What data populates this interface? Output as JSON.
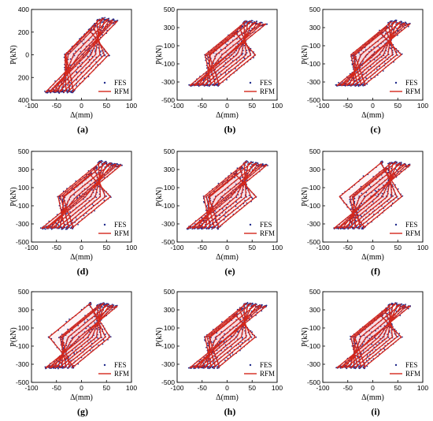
{
  "figure": {
    "legend": {
      "fes_label": "FES",
      "rfm_label": "RFM"
    },
    "colors": {
      "fes": "#1f2a8a",
      "rfm": "#d4281c",
      "fill": "#f6cfd8"
    }
  },
  "chart_data": [
    {
      "type": "scatter",
      "panel": "(a)",
      "xlabel": "Δ(mm)",
      "ylabel": "P(kN)",
      "xlim": [
        -100,
        100
      ],
      "ylim": [
        -400,
        400
      ],
      "xticks": [
        -100,
        -50,
        0,
        50,
        100
      ],
      "yticks": [
        -400,
        -200,
        0,
        200,
        400
      ],
      "ytick_labels": [
        "400",
        "200",
        "0",
        "200",
        "400"
      ],
      "legend_position": "bottom-right",
      "series": [
        {
          "name": "FES",
          "style": "dots"
        },
        {
          "name": "RFM",
          "style": "line"
        }
      ],
      "envelope": {
        "dmax": 72,
        "pmax": 330,
        "dmin": -72,
        "pmin": -330,
        "k": 20,
        "kh": 1.2,
        "d_peak": 40
      }
    },
    {
      "type": "scatter",
      "panel": "(b)",
      "xlabel": "Δ(mm)",
      "ylabel": "P(kN)",
      "xlim": [
        -100,
        100
      ],
      "ylim": [
        -500,
        500
      ],
      "xticks": [
        -100,
        -50,
        0,
        50,
        100
      ],
      "yticks": [
        -500,
        -300,
        -100,
        100,
        300,
        500
      ],
      "legend_position": "bottom-right",
      "series": [
        {
          "name": "FES",
          "style": "dots"
        },
        {
          "name": "RFM",
          "style": "line"
        }
      ],
      "envelope": {
        "dmax": 78,
        "pmax": 380,
        "dmin": -75,
        "pmin": -340,
        "k": 20,
        "kh": 1.4,
        "d_peak": 40
      }
    },
    {
      "type": "scatter",
      "panel": "(c)",
      "xlabel": "Δ(mm)",
      "ylabel": "P(kN)",
      "xlim": [
        -100,
        100
      ],
      "ylim": [
        -500,
        500
      ],
      "xticks": [
        -100,
        -50,
        0,
        50,
        100
      ],
      "yticks": [
        -500,
        -300,
        -100,
        100,
        300,
        500
      ],
      "legend_position": "bottom-right",
      "series": [
        {
          "name": "FES",
          "style": "dots"
        },
        {
          "name": "RFM",
          "style": "line"
        }
      ],
      "envelope": {
        "dmax": 75,
        "pmax": 380,
        "dmin": -72,
        "pmin": -340,
        "k": 20,
        "kh": 1.3,
        "d_peak": 40
      }
    },
    {
      "type": "scatter",
      "panel": "(d)",
      "xlabel": "Δ(mm)",
      "ylabel": "P(kN)",
      "xlim": [
        -100,
        100
      ],
      "ylim": [
        -500,
        500
      ],
      "xticks": [
        -100,
        -50,
        0,
        50,
        100
      ],
      "yticks": [
        -500,
        -300,
        -100,
        100,
        300,
        500
      ],
      "legend_position": "bottom-right",
      "series": [
        {
          "name": "FES",
          "style": "dots"
        },
        {
          "name": "RFM",
          "style": "line"
        }
      ],
      "envelope": {
        "dmax": 80,
        "pmax": 390,
        "dmin": -80,
        "pmin": -350,
        "k": 20,
        "kh": 1.4,
        "d_peak": 40
      }
    },
    {
      "type": "scatter",
      "panel": "(e)",
      "xlabel": "Δ(mm)",
      "ylabel": "P(kN)",
      "xlim": [
        -100,
        100
      ],
      "ylim": [
        -500,
        500
      ],
      "xticks": [
        -100,
        -50,
        0,
        50,
        100
      ],
      "yticks": [
        -500,
        -300,
        -100,
        100,
        300,
        500
      ],
      "legend_position": "bottom-right",
      "series": [
        {
          "name": "FES",
          "style": "dots"
        },
        {
          "name": "RFM",
          "style": "line"
        }
      ],
      "envelope": {
        "dmax": 80,
        "pmax": 390,
        "dmin": -80,
        "pmin": -350,
        "k": 20,
        "kh": 1.4,
        "d_peak": 40
      }
    },
    {
      "type": "scatter",
      "panel": "(f)",
      "xlabel": "Δ(mm)",
      "ylabel": "P(kN)",
      "xlim": [
        -100,
        100
      ],
      "ylim": [
        -500,
        500
      ],
      "xticks": [
        -100,
        -50,
        0,
        50,
        100
      ],
      "yticks": [
        -500,
        -300,
        -100,
        100,
        300,
        500
      ],
      "legend_position": "bottom-right",
      "series": [
        {
          "name": "FES",
          "style": "dots"
        },
        {
          "name": "RFM",
          "style": "line"
        }
      ],
      "envelope": {
        "dmax": 75,
        "pmax": 390,
        "dmin": -78,
        "pmin": -350,
        "k": 20,
        "kh": 1.4,
        "d_peak": 40
      }
    },
    {
      "type": "scatter",
      "panel": "(g)",
      "xlabel": "Δ(mm)",
      "ylabel": "P(kN)",
      "xlim": [
        -100,
        100
      ],
      "ylim": [
        -500,
        500
      ],
      "xticks": [
        -100,
        -50,
        0,
        50,
        100
      ],
      "yticks": [
        -500,
        -300,
        -100,
        100,
        300,
        500
      ],
      "legend_position": "bottom-right",
      "series": [
        {
          "name": "FES",
          "style": "dots"
        },
        {
          "name": "RFM",
          "style": "line"
        }
      ],
      "envelope": {
        "dmax": 72,
        "pmax": 380,
        "dmin": -72,
        "pmin": -340,
        "k": 20,
        "kh": 1.3,
        "d_peak": 40
      }
    },
    {
      "type": "scatter",
      "panel": "(h)",
      "xlabel": "Δ(mm)",
      "ylabel": "P(kN)",
      "xlim": [
        -100,
        100
      ],
      "ylim": [
        -500,
        500
      ],
      "xticks": [
        -100,
        -50,
        0,
        50,
        100
      ],
      "yticks": [
        -500,
        -300,
        -100,
        100,
        300,
        500
      ],
      "legend_position": "bottom-right",
      "series": [
        {
          "name": "FES",
          "style": "dots"
        },
        {
          "name": "RFM",
          "style": "line"
        }
      ],
      "envelope": {
        "dmax": 78,
        "pmax": 380,
        "dmin": -75,
        "pmin": -340,
        "k": 20,
        "kh": 1.4,
        "d_peak": 40
      }
    },
    {
      "type": "scatter",
      "panel": "(i)",
      "xlabel": "Δ(mm)",
      "ylabel": "P(kN)",
      "xlim": [
        -100,
        100
      ],
      "ylim": [
        -500,
        500
      ],
      "xticks": [
        -100,
        -50,
        0,
        50,
        100
      ],
      "yticks": [
        -500,
        -300,
        -100,
        100,
        300,
        500
      ],
      "legend_position": "bottom-right",
      "series": [
        {
          "name": "FES",
          "style": "dots"
        },
        {
          "name": "RFM",
          "style": "line"
        }
      ],
      "envelope": {
        "dmax": 75,
        "pmax": 380,
        "dmin": -72,
        "pmin": -340,
        "k": 20,
        "kh": 1.3,
        "d_peak": 40
      }
    }
  ]
}
